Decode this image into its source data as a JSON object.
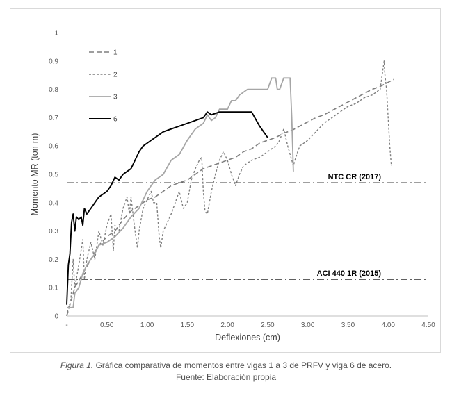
{
  "chart_data": {
    "type": "line",
    "xlabel": "Deflexiones (cm)",
    "ylabel": "Momento MR (ton-m)",
    "xlim": [
      0,
      4.5
    ],
    "ylim": [
      0,
      1
    ],
    "x_ticks": [
      0,
      0.5,
      1.0,
      1.5,
      2.0,
      2.5,
      3.0,
      3.5,
      4.0,
      4.5
    ],
    "x_tick_labels": [
      "-",
      "0.50",
      "1.00",
      "1.50",
      "2.00",
      "2.50",
      "3.00",
      "3.50",
      "4.00",
      "4.50"
    ],
    "y_ticks": [
      0,
      0.1,
      0.2,
      0.3,
      0.4,
      0.5,
      0.6,
      0.7,
      0.8,
      0.9,
      1
    ],
    "y_tick_labels": [
      "0",
      "0.1",
      "0.2",
      "0.3",
      "0.4",
      "0.5",
      "0.6",
      "0.7",
      "0.8",
      "0.9",
      "1"
    ],
    "grid": false,
    "legend_position": "top-left",
    "series": [
      {
        "name": "1",
        "color": "#7f7f7f",
        "dash": "7,4",
        "width": 1.6,
        "points": [
          [
            0,
            0
          ],
          [
            0.05,
            0.05
          ],
          [
            0.1,
            0.1
          ],
          [
            0.2,
            0.15
          ],
          [
            0.3,
            0.2
          ],
          [
            0.4,
            0.25
          ],
          [
            0.5,
            0.28
          ],
          [
            0.6,
            0.3
          ],
          [
            0.7,
            0.34
          ],
          [
            0.8,
            0.37
          ],
          [
            0.9,
            0.39
          ],
          [
            1.0,
            0.41
          ],
          [
            1.1,
            0.42
          ],
          [
            1.2,
            0.44
          ],
          [
            1.3,
            0.46
          ],
          [
            1.4,
            0.47
          ],
          [
            1.5,
            0.48
          ],
          [
            1.6,
            0.5
          ],
          [
            1.7,
            0.52
          ],
          [
            1.8,
            0.53
          ],
          [
            1.9,
            0.54
          ],
          [
            2.0,
            0.55
          ],
          [
            2.1,
            0.56
          ],
          [
            2.2,
            0.58
          ],
          [
            2.3,
            0.59
          ],
          [
            2.4,
            0.61
          ],
          [
            2.5,
            0.62
          ],
          [
            2.6,
            0.63
          ],
          [
            2.7,
            0.645
          ],
          [
            2.8,
            0.655
          ],
          [
            2.9,
            0.67
          ],
          [
            3.0,
            0.685
          ],
          [
            3.1,
            0.7
          ],
          [
            3.2,
            0.71
          ],
          [
            3.3,
            0.725
          ],
          [
            3.4,
            0.74
          ],
          [
            3.5,
            0.755
          ],
          [
            3.6,
            0.77
          ],
          [
            3.7,
            0.785
          ],
          [
            3.8,
            0.8
          ],
          [
            3.9,
            0.81
          ],
          [
            4.0,
            0.825
          ],
          [
            4.07,
            0.835
          ]
        ]
      },
      {
        "name": "2",
        "color": "#7f7f7f",
        "dash": "3,2.5",
        "width": 1.4,
        "points": [
          [
            0,
            0
          ],
          [
            0.02,
            0.03
          ],
          [
            0.05,
            0.05
          ],
          [
            0.08,
            0.2
          ],
          [
            0.1,
            0.1
          ],
          [
            0.15,
            0.18
          ],
          [
            0.2,
            0.27
          ],
          [
            0.22,
            0.13
          ],
          [
            0.25,
            0.2
          ],
          [
            0.3,
            0.26
          ],
          [
            0.35,
            0.2
          ],
          [
            0.4,
            0.3
          ],
          [
            0.45,
            0.25
          ],
          [
            0.5,
            0.32
          ],
          [
            0.55,
            0.36
          ],
          [
            0.58,
            0.23
          ],
          [
            0.6,
            0.32
          ],
          [
            0.65,
            0.3
          ],
          [
            0.7,
            0.38
          ],
          [
            0.75,
            0.42
          ],
          [
            0.78,
            0.36
          ],
          [
            0.8,
            0.42
          ],
          [
            0.85,
            0.3
          ],
          [
            0.88,
            0.24
          ],
          [
            0.9,
            0.3
          ],
          [
            0.95,
            0.38
          ],
          [
            1.0,
            0.41
          ],
          [
            1.05,
            0.44
          ],
          [
            1.08,
            0.4
          ],
          [
            1.12,
            0.4
          ],
          [
            1.15,
            0.28
          ],
          [
            1.17,
            0.24
          ],
          [
            1.2,
            0.3
          ],
          [
            1.3,
            0.36
          ],
          [
            1.4,
            0.44
          ],
          [
            1.45,
            0.38
          ],
          [
            1.5,
            0.4
          ],
          [
            1.55,
            0.48
          ],
          [
            1.6,
            0.52
          ],
          [
            1.65,
            0.55
          ],
          [
            1.68,
            0.56
          ],
          [
            1.7,
            0.44
          ],
          [
            1.72,
            0.37
          ],
          [
            1.75,
            0.36
          ],
          [
            1.8,
            0.44
          ],
          [
            1.85,
            0.5
          ],
          [
            1.9,
            0.55
          ],
          [
            1.95,
            0.58
          ],
          [
            2.0,
            0.55
          ],
          [
            2.05,
            0.5
          ],
          [
            2.1,
            0.46
          ],
          [
            2.15,
            0.5
          ],
          [
            2.2,
            0.53
          ],
          [
            2.3,
            0.55
          ],
          [
            2.4,
            0.56
          ],
          [
            2.5,
            0.58
          ],
          [
            2.6,
            0.6
          ],
          [
            2.65,
            0.62
          ],
          [
            2.7,
            0.66
          ],
          [
            2.75,
            0.6
          ],
          [
            2.8,
            0.55
          ],
          [
            2.82,
            0.53
          ],
          [
            2.85,
            0.56
          ],
          [
            2.9,
            0.6
          ],
          [
            3.0,
            0.62
          ],
          [
            3.1,
            0.65
          ],
          [
            3.2,
            0.68
          ],
          [
            3.3,
            0.7
          ],
          [
            3.4,
            0.72
          ],
          [
            3.5,
            0.74
          ],
          [
            3.6,
            0.75
          ],
          [
            3.7,
            0.77
          ],
          [
            3.8,
            0.78
          ],
          [
            3.9,
            0.8
          ],
          [
            3.95,
            0.9
          ],
          [
            3.96,
            0.85
          ],
          [
            3.98,
            0.8
          ],
          [
            4.0,
            0.7
          ],
          [
            4.02,
            0.6
          ],
          [
            4.04,
            0.53
          ]
        ]
      },
      {
        "name": "3",
        "color": "#a6a6a6",
        "dash": "",
        "width": 1.8,
        "points": [
          [
            0,
            0.03
          ],
          [
            0.08,
            0.03
          ],
          [
            0.1,
            0.08
          ],
          [
            0.15,
            0.1
          ],
          [
            0.18,
            0.13
          ],
          [
            0.2,
            0.15
          ],
          [
            0.25,
            0.18
          ],
          [
            0.3,
            0.2
          ],
          [
            0.35,
            0.22
          ],
          [
            0.4,
            0.25
          ],
          [
            0.5,
            0.26
          ],
          [
            0.6,
            0.28
          ],
          [
            0.7,
            0.31
          ],
          [
            0.8,
            0.35
          ],
          [
            0.9,
            0.38
          ],
          [
            1.0,
            0.44
          ],
          [
            1.1,
            0.48
          ],
          [
            1.2,
            0.5
          ],
          [
            1.3,
            0.55
          ],
          [
            1.4,
            0.57
          ],
          [
            1.5,
            0.62
          ],
          [
            1.6,
            0.66
          ],
          [
            1.7,
            0.68
          ],
          [
            1.75,
            0.71
          ],
          [
            1.8,
            0.69
          ],
          [
            1.85,
            0.7
          ],
          [
            1.9,
            0.73
          ],
          [
            2.0,
            0.73
          ],
          [
            2.05,
            0.76
          ],
          [
            2.1,
            0.76
          ],
          [
            2.15,
            0.78
          ],
          [
            2.2,
            0.79
          ],
          [
            2.25,
            0.8
          ],
          [
            2.5,
            0.8
          ],
          [
            2.55,
            0.84
          ],
          [
            2.6,
            0.84
          ],
          [
            2.62,
            0.8
          ],
          [
            2.65,
            0.8
          ],
          [
            2.7,
            0.84
          ],
          [
            2.78,
            0.84
          ],
          [
            2.8,
            0.7
          ],
          [
            2.82,
            0.51
          ]
        ]
      },
      {
        "name": "6",
        "color": "#000000",
        "dash": "",
        "width": 1.9,
        "points": [
          [
            0,
            0.04
          ],
          [
            0.02,
            0.18
          ],
          [
            0.04,
            0.22
          ],
          [
            0.06,
            0.33
          ],
          [
            0.08,
            0.36
          ],
          [
            0.1,
            0.3
          ],
          [
            0.12,
            0.35
          ],
          [
            0.15,
            0.34
          ],
          [
            0.18,
            0.35
          ],
          [
            0.2,
            0.32
          ],
          [
            0.22,
            0.38
          ],
          [
            0.25,
            0.36
          ],
          [
            0.3,
            0.38
          ],
          [
            0.35,
            0.4
          ],
          [
            0.4,
            0.42
          ],
          [
            0.45,
            0.43
          ],
          [
            0.5,
            0.44
          ],
          [
            0.55,
            0.46
          ],
          [
            0.6,
            0.49
          ],
          [
            0.65,
            0.48
          ],
          [
            0.7,
            0.5
          ],
          [
            0.8,
            0.52
          ],
          [
            0.85,
            0.55
          ],
          [
            0.9,
            0.58
          ],
          [
            0.95,
            0.6
          ],
          [
            1.0,
            0.61
          ],
          [
            1.05,
            0.62
          ],
          [
            1.1,
            0.63
          ],
          [
            1.2,
            0.65
          ],
          [
            1.3,
            0.66
          ],
          [
            1.4,
            0.67
          ],
          [
            1.5,
            0.68
          ],
          [
            1.6,
            0.69
          ],
          [
            1.7,
            0.7
          ],
          [
            1.75,
            0.72
          ],
          [
            1.8,
            0.71
          ],
          [
            1.9,
            0.72
          ],
          [
            2.3,
            0.72
          ],
          [
            2.4,
            0.67
          ],
          [
            2.5,
            0.63
          ]
        ]
      }
    ],
    "reference_lines": [
      {
        "label": "NTC CR (2017)",
        "y": 0.47
      },
      {
        "label": "ACI 440 1R (2015)",
        "y": 0.13
      }
    ]
  },
  "caption": {
    "figure_label": "Figura 1.",
    "figure_text": " Gráfica comparativa de momentos entre vigas 1 a 3 de PRFV y viga 6 de acero.",
    "source": "Fuente: Elaboración propia"
  }
}
